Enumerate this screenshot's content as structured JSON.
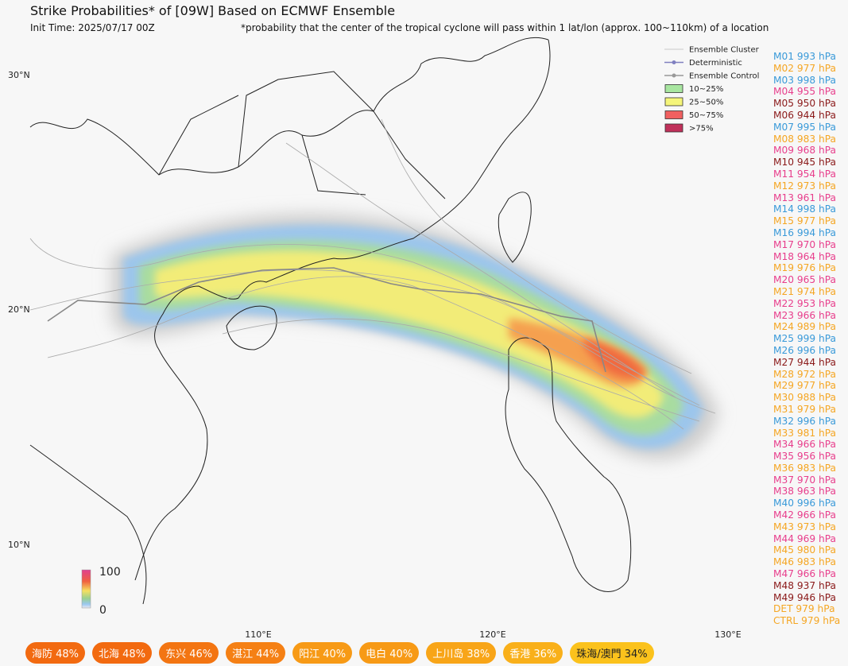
{
  "header": {
    "title": "Strike Probabilities* of [09W] Based on ECMWF Ensemble",
    "init_time": "Init Time: 2025/07/17 00Z",
    "note": "*probability that the center of the tropical cyclone will pass within 1 lat/lon (approx. 100~110km) of a location"
  },
  "map": {
    "lat_labels": [
      "30°N",
      "20°N",
      "10°N"
    ],
    "lon_labels": [
      "110°E",
      "120°E",
      "130°E"
    ]
  },
  "legend": {
    "items": [
      {
        "label": "Ensemble Cluster",
        "color": "#bbbbbb"
      },
      {
        "label": "Deterministic",
        "color": "#8080c0"
      },
      {
        "label": "Ensemble Control",
        "color": "#999999"
      },
      {
        "label": "10~25%",
        "color": "#a8e6a0"
      },
      {
        "label": "25~50%",
        "color": "#f5f57a"
      },
      {
        "label": "50~75%",
        "color": "#f06060"
      },
      {
        "label": ">75%",
        "color": "#c0305a"
      }
    ]
  },
  "colorbar": {
    "top": "100",
    "bottom": "0"
  },
  "members": [
    {
      "label": "M01 993 hPa",
      "color": "#3a9ad9"
    },
    {
      "label": "M02 977 hPa",
      "color": "#f5a623"
    },
    {
      "label": "M03 998 hPa",
      "color": "#3a9ad9"
    },
    {
      "label": "M04 955 hPa",
      "color": "#e83e8c"
    },
    {
      "label": "M05 950 hPa",
      "color": "#8b1a1a"
    },
    {
      "label": "M06 944 hPa",
      "color": "#8b1a1a"
    },
    {
      "label": "M07 995 hPa",
      "color": "#3a9ad9"
    },
    {
      "label": "M08 983 hPa",
      "color": "#f5a623"
    },
    {
      "label": "M09 968 hPa",
      "color": "#e83e8c"
    },
    {
      "label": "M10 945 hPa",
      "color": "#8b1a1a"
    },
    {
      "label": "M11 954 hPa",
      "color": "#e83e8c"
    },
    {
      "label": "M12 973 hPa",
      "color": "#f5a623"
    },
    {
      "label": "M13 961 hPa",
      "color": "#e83e8c"
    },
    {
      "label": "M14 998 hPa",
      "color": "#3a9ad9"
    },
    {
      "label": "M15 977 hPa",
      "color": "#f5a623"
    },
    {
      "label": "M16 994 hPa",
      "color": "#3a9ad9"
    },
    {
      "label": "M17 970 hPa",
      "color": "#e83e8c"
    },
    {
      "label": "M18 964 hPa",
      "color": "#e83e8c"
    },
    {
      "label": "M19 976 hPa",
      "color": "#f5a623"
    },
    {
      "label": "M20 965 hPa",
      "color": "#e83e8c"
    },
    {
      "label": "M21 974 hPa",
      "color": "#f5a623"
    },
    {
      "label": "M22 953 hPa",
      "color": "#e83e8c"
    },
    {
      "label": "M23 966 hPa",
      "color": "#e83e8c"
    },
    {
      "label": "M24 989 hPa",
      "color": "#f5a623"
    },
    {
      "label": "M25 999 hPa",
      "color": "#3a9ad9"
    },
    {
      "label": "M26 996 hPa",
      "color": "#3a9ad9"
    },
    {
      "label": "M27 944 hPa",
      "color": "#8b1a1a"
    },
    {
      "label": "M28 972 hPa",
      "color": "#f5a623"
    },
    {
      "label": "M29 977 hPa",
      "color": "#f5a623"
    },
    {
      "label": "M30 988 hPa",
      "color": "#f5a623"
    },
    {
      "label": "M31 979 hPa",
      "color": "#f5a623"
    },
    {
      "label": "M32 996 hPa",
      "color": "#3a9ad9"
    },
    {
      "label": "M33 981 hPa",
      "color": "#f5a623"
    },
    {
      "label": "M34 966 hPa",
      "color": "#e83e8c"
    },
    {
      "label": "M35 956 hPa",
      "color": "#e83e8c"
    },
    {
      "label": "M36 983 hPa",
      "color": "#f5a623"
    },
    {
      "label": "M37 970 hPa",
      "color": "#e83e8c"
    },
    {
      "label": "M38 963 hPa",
      "color": "#e83e8c"
    },
    {
      "label": "M40 996 hPa",
      "color": "#3a9ad9"
    },
    {
      "label": "M42 966 hPa",
      "color": "#e83e8c"
    },
    {
      "label": "M43 973 hPa",
      "color": "#f5a623"
    },
    {
      "label": "M44 969 hPa",
      "color": "#e83e8c"
    },
    {
      "label": "M45 980 hPa",
      "color": "#f5a623"
    },
    {
      "label": "M46 983 hPa",
      "color": "#f5a623"
    },
    {
      "label": "M47 966 hPa",
      "color": "#e83e8c"
    },
    {
      "label": "M48 937 hPa",
      "color": "#8b1a1a"
    },
    {
      "label": "M49 946 hPa",
      "color": "#8b1a1a"
    },
    {
      "label": "DET 979 hPa",
      "color": "#f5a623"
    },
    {
      "label": "CTRL 979 hPa",
      "color": "#f5a623"
    }
  ],
  "cities": [
    {
      "label": "海防 48%",
      "color": "#f26a10"
    },
    {
      "label": "北海 48%",
      "color": "#f26a10"
    },
    {
      "label": "东兴 46%",
      "color": "#f37512"
    },
    {
      "label": "湛江 44%",
      "color": "#f58014"
    },
    {
      "label": "阳江 40%",
      "color": "#f79a16"
    },
    {
      "label": "电白 40%",
      "color": "#f79a16"
    },
    {
      "label": "上川岛 38%",
      "color": "#f8a518"
    },
    {
      "label": "香港 36%",
      "color": "#f9b01a"
    },
    {
      "label": "珠海/澳門 34%",
      "color": "#fbc21c"
    }
  ]
}
